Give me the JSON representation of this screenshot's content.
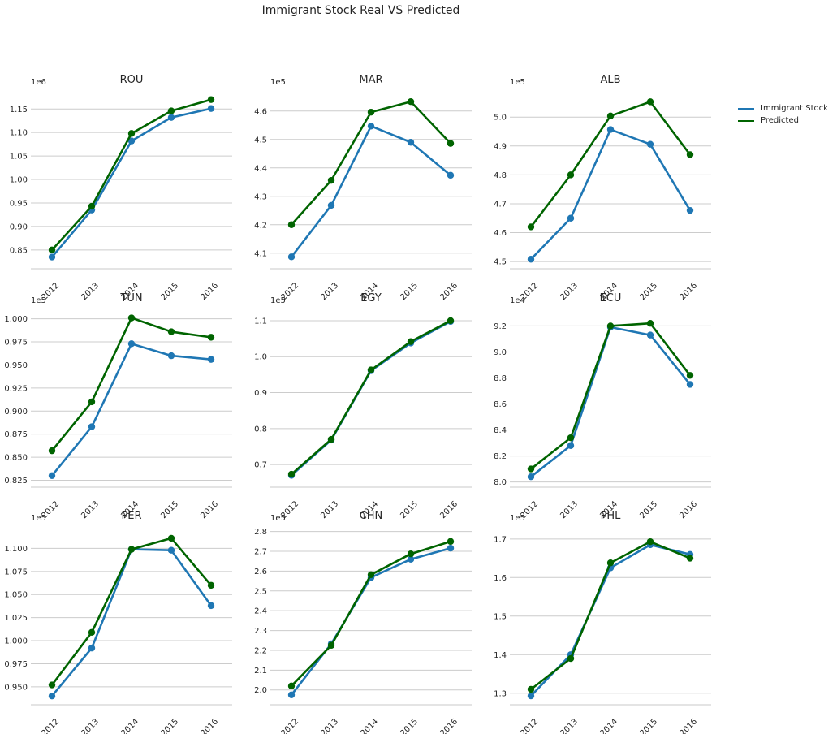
{
  "figure": {
    "title": "Immigrant Stock Real VS Predicted",
    "colors": {
      "real": "#1f77b4",
      "predicted": "#006400",
      "grid": "#cccccc",
      "axis": "#c8c8c8"
    }
  },
  "legend": {
    "items": [
      {
        "label": "Immigrant Stock",
        "color": "#1f77b4"
      },
      {
        "label": "Predicted",
        "color": "#006400"
      }
    ]
  },
  "chart_data": [
    {
      "type": "line",
      "title": "ROU",
      "x": [
        "2012",
        "2013",
        "2014",
        "2015",
        "2016"
      ],
      "scale_label": "1e6",
      "yticks": [
        "0.85",
        "0.90",
        "0.95",
        "1.00",
        "1.05",
        "1.10",
        "1.15"
      ],
      "ylim": [
        0.81,
        1.185
      ],
      "series": [
        {
          "name": "Immigrant Stock",
          "values": [
            0.835,
            0.935,
            1.082,
            1.132,
            1.151
          ]
        },
        {
          "name": "Predicted",
          "values": [
            0.85,
            0.943,
            1.098,
            1.146,
            1.17
          ]
        }
      ]
    },
    {
      "type": "line",
      "title": "MAR",
      "x": [
        "2012",
        "2013",
        "2014",
        "2015",
        "2016"
      ],
      "scale_label": "1e5",
      "yticks": [
        "4.1",
        "4.2",
        "4.3",
        "4.4",
        "4.5",
        "4.6"
      ],
      "ylim": [
        4.045,
        4.665
      ],
      "series": [
        {
          "name": "Immigrant Stock",
          "values": [
            4.087,
            4.268,
            4.547,
            4.49,
            4.374
          ]
        },
        {
          "name": "Predicted",
          "values": [
            4.2,
            4.356,
            4.596,
            4.633,
            4.486
          ]
        }
      ]
    },
    {
      "type": "line",
      "title": "ALB",
      "x": [
        "2012",
        "2013",
        "2014",
        "2015",
        "2016"
      ],
      "scale_label": "1e5",
      "yticks": [
        "4.5",
        "4.6",
        "4.7",
        "4.8",
        "4.9",
        "5.0"
      ],
      "ylim": [
        4.475,
        5.085
      ],
      "series": [
        {
          "name": "Immigrant Stock",
          "values": [
            4.508,
            4.65,
            4.957,
            4.906,
            4.677
          ]
        },
        {
          "name": "Predicted",
          "values": [
            4.62,
            4.8,
            5.004,
            5.053,
            4.87
          ]
        }
      ]
    },
    {
      "type": "line",
      "title": "TUN",
      "x": [
        "2012",
        "2013",
        "2014",
        "2015",
        "2016"
      ],
      "scale_label": "1e5",
      "yticks": [
        "0.825",
        "0.850",
        "0.875",
        "0.900",
        "0.925",
        "0.950",
        "0.975",
        "1.000"
      ],
      "ylim": [
        0.8175,
        1.0085
      ],
      "series": [
        {
          "name": "Immigrant Stock",
          "values": [
            0.83,
            0.883,
            0.973,
            0.96,
            0.956
          ]
        },
        {
          "name": "Predicted",
          "values": [
            0.857,
            0.91,
            1.001,
            0.986,
            0.98
          ]
        }
      ]
    },
    {
      "type": "line",
      "title": "EGY",
      "x": [
        "2012",
        "2013",
        "2014",
        "2015",
        "2016"
      ],
      "scale_label": "1e5",
      "yticks": [
        "0.7",
        "0.8",
        "0.9",
        "1.0",
        "1.1"
      ],
      "ylim": [
        0.637,
        1.127
      ],
      "series": [
        {
          "name": "Immigrant Stock",
          "values": [
            0.67,
            0.768,
            0.961,
            1.038,
            1.098
          ]
        },
        {
          "name": "Predicted",
          "values": [
            0.673,
            0.77,
            0.963,
            1.042,
            1.1
          ]
        }
      ]
    },
    {
      "type": "line",
      "title": "ECU",
      "x": [
        "2012",
        "2013",
        "2014",
        "2015",
        "2016"
      ],
      "scale_label": "1e4",
      "yticks": [
        "8.0",
        "8.2",
        "8.4",
        "8.6",
        "8.8",
        "9.0",
        "9.2"
      ],
      "ylim": [
        7.96,
        9.315
      ],
      "series": [
        {
          "name": "Immigrant Stock",
          "values": [
            8.04,
            8.28,
            9.19,
            9.13,
            8.75
          ]
        },
        {
          "name": "Predicted",
          "values": [
            8.1,
            8.34,
            9.2,
            9.22,
            8.82
          ]
        }
      ]
    },
    {
      "type": "line",
      "title": "PER",
      "x": [
        "2012",
        "2013",
        "2014",
        "2015",
        "2016"
      ],
      "scale_label": "1e5",
      "yticks": [
        "0.950",
        "0.975",
        "1.000",
        "1.025",
        "1.050",
        "1.075",
        "1.100"
      ],
      "ylim": [
        0.9305,
        1.1215
      ],
      "series": [
        {
          "name": "Immigrant Stock",
          "values": [
            0.94,
            0.992,
            1.099,
            1.098,
            1.038
          ]
        },
        {
          "name": "Predicted",
          "values": [
            0.952,
            1.009,
            1.099,
            1.111,
            1.06
          ]
        }
      ]
    },
    {
      "type": "line",
      "title": "CHN",
      "x": [
        "2012",
        "2013",
        "2014",
        "2015",
        "2016"
      ],
      "scale_label": "1e5",
      "yticks": [
        "2.0",
        "2.1",
        "2.2",
        "2.3",
        "2.4",
        "2.5",
        "2.6",
        "2.7",
        "2.8"
      ],
      "ylim": [
        1.925,
        2.815
      ],
      "series": [
        {
          "name": "Immigrant Stock",
          "values": [
            1.975,
            2.233,
            2.568,
            2.66,
            2.716
          ]
        },
        {
          "name": "Predicted",
          "values": [
            2.02,
            2.225,
            2.582,
            2.687,
            2.75
          ]
        }
      ]
    },
    {
      "type": "line",
      "title": "PHL",
      "x": [
        "2012",
        "2013",
        "2014",
        "2015",
        "2016"
      ],
      "scale_label": "1e5",
      "yticks": [
        "1.3",
        "1.4",
        "1.5",
        "1.6",
        "1.7"
      ],
      "ylim": [
        1.27,
        1.727
      ],
      "series": [
        {
          "name": "Immigrant Stock",
          "values": [
            1.293,
            1.4,
            1.625,
            1.685,
            1.66
          ]
        },
        {
          "name": "Predicted",
          "values": [
            1.31,
            1.39,
            1.638,
            1.693,
            1.65
          ]
        }
      ]
    }
  ]
}
